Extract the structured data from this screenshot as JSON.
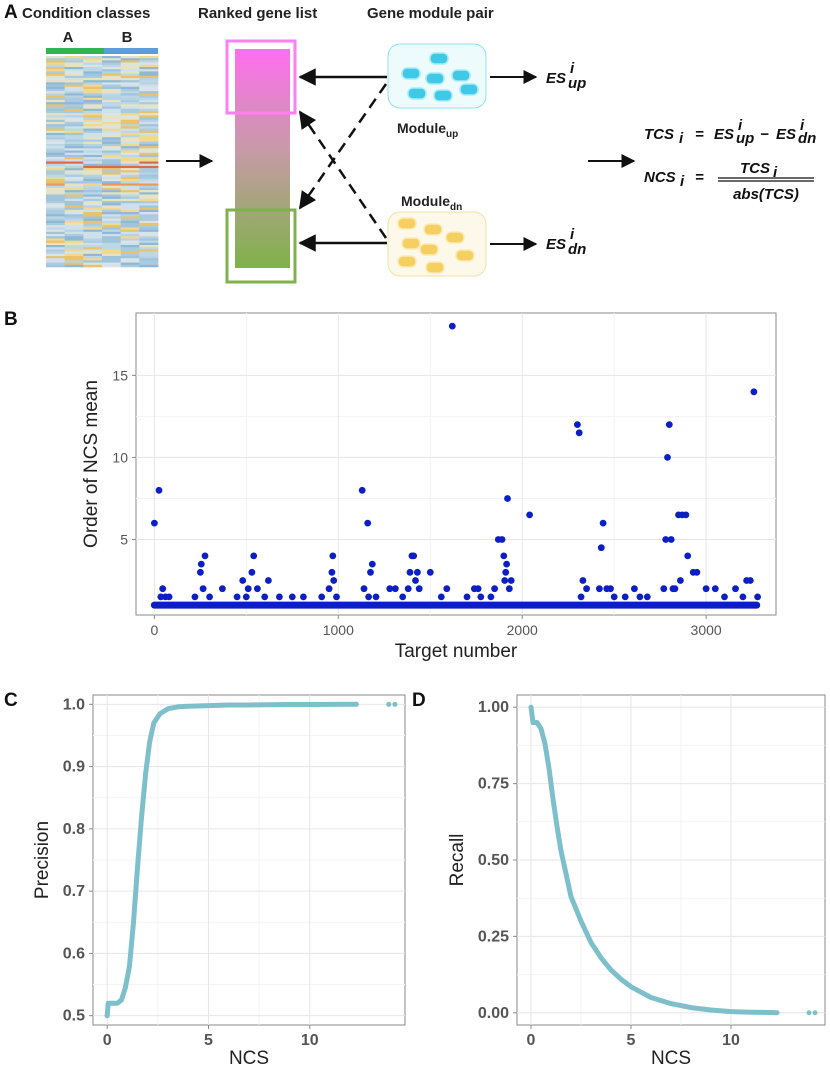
{
  "panel_a": {
    "letter": "A",
    "header_condition": "Condition classes",
    "header_ranked": "Ranked gene list",
    "header_module": "Gene module pair",
    "class_a": "A",
    "class_b": "B",
    "module_up": {
      "main": "Module",
      "sub": "up"
    },
    "module_dn": {
      "main": "Module",
      "sub": "dn"
    },
    "es_up": {
      "base": "ES",
      "sup": "i",
      "sub": "up"
    },
    "es_dn": {
      "base": "ES",
      "sup": "i",
      "sub": "dn"
    },
    "formula_tcs": {
      "lhs": "TCS",
      "lhs_sub": "i",
      "eq": "=",
      "minus": "−"
    },
    "formula_ncs": {
      "lhs": "NCS",
      "lhs_sub": "i",
      "eq": "=",
      "num": "TCS",
      "num_sub": "i",
      "den": "abs(TCS)"
    },
    "colors": {
      "green": "#2db84d",
      "blue": "#5b9ee0",
      "magenta": "#ff7ef2",
      "olive": "#7fb24a",
      "cyan": "#3fc9e6",
      "yellow": "#f5cf5f"
    }
  },
  "chart_data": [
    {
      "id": "B",
      "letter": "B",
      "type": "scatter",
      "xlabel": "Target number",
      "ylabel": "Order of NCS mean",
      "xlim": [
        -100,
        3380
      ],
      "ylim": [
        0.4,
        18.8
      ],
      "xticks": [
        0,
        1000,
        2000,
        3000
      ],
      "yticks": [
        5,
        10,
        15
      ],
      "color": "#0c1fc5",
      "baseline": {
        "y": 1,
        "x_from": 0,
        "x_to": 3275
      },
      "points": [
        [
          0,
          6
        ],
        [
          25,
          8
        ],
        [
          35,
          1.5
        ],
        [
          45,
          2
        ],
        [
          60,
          1.5
        ],
        [
          80,
          1.5
        ],
        [
          220,
          1.5
        ],
        [
          250,
          3
        ],
        [
          255,
          3.5
        ],
        [
          275,
          4
        ],
        [
          265,
          2
        ],
        [
          300,
          1.5
        ],
        [
          370,
          2
        ],
        [
          450,
          1.5
        ],
        [
          480,
          2.5
        ],
        [
          510,
          2
        ],
        [
          530,
          3
        ],
        [
          540,
          4
        ],
        [
          560,
          2
        ],
        [
          500,
          1.5
        ],
        [
          600,
          1.5
        ],
        [
          620,
          2.5
        ],
        [
          680,
          1.5
        ],
        [
          750,
          1.5
        ],
        [
          810,
          1.5
        ],
        [
          910,
          1.5
        ],
        [
          950,
          2
        ],
        [
          965,
          3
        ],
        [
          970,
          4
        ],
        [
          975,
          2.5
        ],
        [
          990,
          1.5
        ],
        [
          1130,
          8
        ],
        [
          1140,
          2
        ],
        [
          1160,
          6
        ],
        [
          1175,
          3
        ],
        [
          1185,
          3.5
        ],
        [
          1205,
          1.5
        ],
        [
          1165,
          1.5
        ],
        [
          1280,
          2
        ],
        [
          1310,
          2
        ],
        [
          1350,
          1.5
        ],
        [
          1380,
          2
        ],
        [
          1390,
          3
        ],
        [
          1400,
          4
        ],
        [
          1410,
          4
        ],
        [
          1420,
          2.5
        ],
        [
          1430,
          3
        ],
        [
          1440,
          2
        ],
        [
          1500,
          3
        ],
        [
          1560,
          1.5
        ],
        [
          1590,
          2
        ],
        [
          1620,
          18
        ],
        [
          1700,
          1.5
        ],
        [
          1740,
          2
        ],
        [
          1760,
          2
        ],
        [
          1775,
          1.5
        ],
        [
          1830,
          1.5
        ],
        [
          1850,
          2
        ],
        [
          1870,
          5
        ],
        [
          1890,
          5
        ],
        [
          1900,
          4
        ],
        [
          1905,
          2.5
        ],
        [
          1910,
          3
        ],
        [
          1915,
          3.5
        ],
        [
          1920,
          7.5
        ],
        [
          1930,
          2
        ],
        [
          1940,
          2.5
        ],
        [
          2040,
          6.5
        ],
        [
          2300,
          12
        ],
        [
          2310,
          11.5
        ],
        [
          2320,
          1.5
        ],
        [
          2330,
          2.5
        ],
        [
          2350,
          2
        ],
        [
          2420,
          2
        ],
        [
          2430,
          4.5
        ],
        [
          2440,
          6
        ],
        [
          2460,
          2
        ],
        [
          2480,
          2
        ],
        [
          2500,
          1.5
        ],
        [
          2560,
          1.5
        ],
        [
          2610,
          2
        ],
        [
          2640,
          1.5
        ],
        [
          2680,
          1.5
        ],
        [
          2770,
          2
        ],
        [
          2780,
          5
        ],
        [
          2790,
          10
        ],
        [
          2800,
          12
        ],
        [
          2810,
          5
        ],
        [
          2820,
          2
        ],
        [
          2830,
          2
        ],
        [
          2850,
          6.5
        ],
        [
          2860,
          2.5
        ],
        [
          2870,
          6.5
        ],
        [
          2890,
          6.5
        ],
        [
          2900,
          4
        ],
        [
          2930,
          3
        ],
        [
          2950,
          3
        ],
        [
          3000,
          2
        ],
        [
          3050,
          2
        ],
        [
          3100,
          1.5
        ],
        [
          3160,
          2
        ],
        [
          3200,
          1.5
        ],
        [
          3220,
          2.5
        ],
        [
          3240,
          2.5
        ],
        [
          3260,
          14
        ],
        [
          3280,
          1.5
        ]
      ]
    },
    {
      "id": "C",
      "letter": "C",
      "type": "line",
      "xlabel": "NCS",
      "ylabel": "Precision",
      "xlim": [
        -0.7,
        14.7
      ],
      "ylim": [
        0.485,
        1.015
      ],
      "xticks": [
        0,
        5,
        10
      ],
      "yticks": [
        0.5,
        0.6,
        0.7,
        0.8,
        0.9,
        1.0
      ],
      "color": "#7ebfcc",
      "x": [
        0,
        0.05,
        0.1,
        0.3,
        0.5,
        0.7,
        0.9,
        1.1,
        1.3,
        1.5,
        1.7,
        1.9,
        2.1,
        2.3,
        2.6,
        3,
        3.5,
        4,
        5,
        6,
        7,
        8,
        9,
        10,
        11,
        12,
        12.3
      ],
      "y": [
        0.5,
        0.52,
        0.52,
        0.52,
        0.52,
        0.525,
        0.545,
        0.58,
        0.65,
        0.74,
        0.82,
        0.89,
        0.94,
        0.97,
        0.985,
        0.993,
        0.996,
        0.997,
        0.998,
        0.999,
        0.999,
        0.9995,
        0.9997,
        0.9998,
        0.9999,
        1.0,
        1.0
      ],
      "outliers": [
        [
          13.9,
          1.0
        ],
        [
          14.2,
          1.0
        ]
      ]
    },
    {
      "id": "D",
      "letter": "D",
      "type": "line",
      "xlabel": "NCS",
      "ylabel": "Recall",
      "xlim": [
        -0.7,
        14.7
      ],
      "ylim": [
        -0.04,
        1.04
      ],
      "xticks": [
        0,
        5,
        10
      ],
      "yticks": [
        0.0,
        0.25,
        0.5,
        0.75,
        1.0
      ],
      "ytick_labels": [
        "0.00",
        "0.25",
        "0.50",
        "0.75",
        "1.00"
      ],
      "color": "#7ebfcc",
      "x": [
        0,
        0.1,
        0.3,
        0.5,
        0.7,
        0.9,
        1.1,
        1.3,
        1.5,
        1.8,
        2,
        2.5,
        3,
        3.5,
        4,
        4.5,
        5,
        6,
        7,
        8,
        9,
        10,
        11,
        12,
        12.3
      ],
      "y": [
        1.0,
        0.95,
        0.95,
        0.93,
        0.88,
        0.8,
        0.7,
        0.61,
        0.53,
        0.44,
        0.38,
        0.3,
        0.23,
        0.18,
        0.14,
        0.11,
        0.085,
        0.05,
        0.03,
        0.017,
        0.009,
        0.004,
        0.002,
        0.001,
        0.0
      ],
      "outliers": [
        [
          13.9,
          0.0
        ],
        [
          14.2,
          0.0
        ]
      ]
    }
  ]
}
